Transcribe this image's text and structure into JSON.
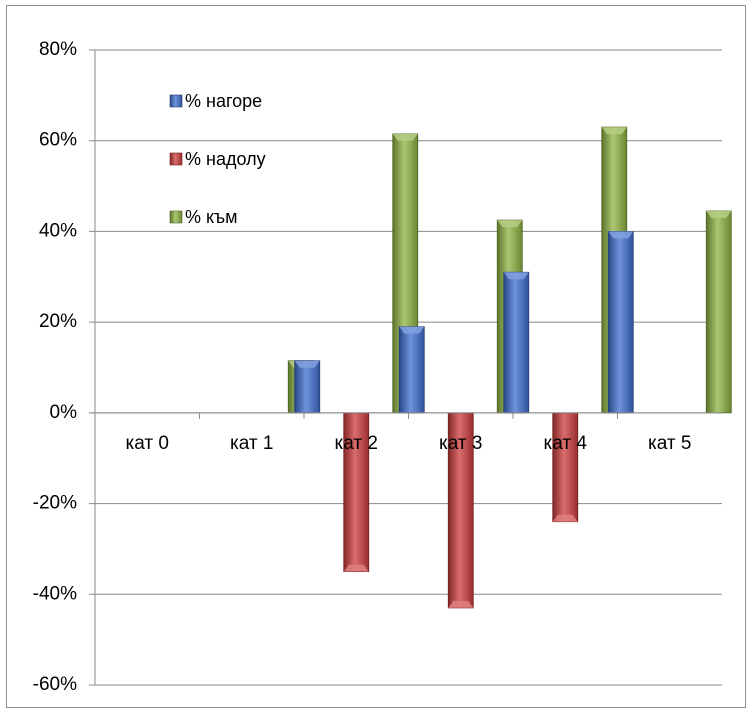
{
  "chart_data": {
    "type": "bar",
    "title": "",
    "xlabel": "",
    "ylabel": "",
    "categories": [
      "кат 0",
      "кат 1",
      "кат 2",
      "кат 3",
      "кат 4",
      "кат 5"
    ],
    "series": [
      {
        "name": "% нагоре",
        "color": "#3f6fd0",
        "values": [
          0,
          0,
          0.115,
          0.19,
          0.31,
          0.4
        ]
      },
      {
        "name": "% надолу",
        "color": "#cd3c3c",
        "values": [
          0,
          0,
          -0.35,
          -0.43,
          -0.24,
          0
        ]
      },
      {
        "name": "% към",
        "color": "#8fb441",
        "values": [
          0,
          0.115,
          0.615,
          0.425,
          0.63,
          0.445
        ]
      }
    ],
    "ylim": [
      -0.6,
      0.8
    ],
    "y_ticks": [
      0.8,
      0.6,
      0.4,
      0.2,
      0,
      -0.2,
      -0.4,
      -0.6
    ],
    "y_tick_labels": [
      "80%",
      "60%",
      "40%",
      "20%",
      "0%",
      "-20%",
      "-40%",
      "-60%"
    ],
    "grid": true,
    "legend_position": "top-left inside plot"
  }
}
